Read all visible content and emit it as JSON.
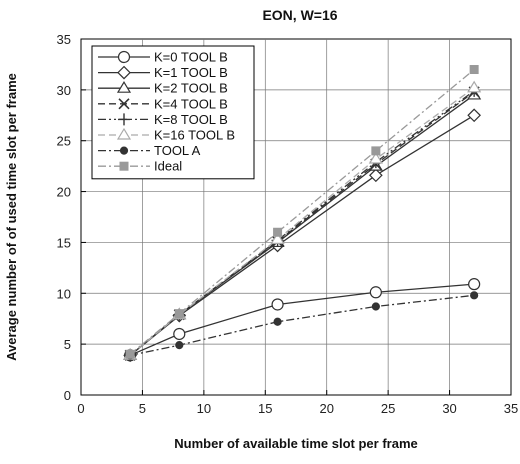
{
  "chart_data": {
    "type": "line",
    "title": "EON, W=16",
    "xlabel": "Number of available time slot per frame",
    "ylabel": "Average number of of used time slot per frame",
    "xlim": [
      0,
      35
    ],
    "ylim": [
      0,
      35
    ],
    "xticks": [
      0,
      5,
      10,
      15,
      20,
      25,
      30,
      35
    ],
    "yticks": [
      0,
      5,
      10,
      15,
      20,
      25,
      30,
      35
    ],
    "grid": true,
    "legend_position": "top-left",
    "x": [
      4,
      8,
      16,
      24,
      32
    ],
    "series": [
      {
        "name": "K=0 TOOL B",
        "values": [
          3.9,
          6.0,
          8.9,
          10.1,
          10.9
        ],
        "marker": "circle-open",
        "dash": "solid",
        "color": "#333333"
      },
      {
        "name": "K=1 TOOL B",
        "values": [
          3.9,
          7.8,
          14.7,
          21.6,
          27.5
        ],
        "marker": "diamond-open",
        "dash": "solid",
        "color": "#333333"
      },
      {
        "name": "K=2 TOOL B",
        "values": [
          3.9,
          7.9,
          15.0,
          22.5,
          29.5
        ],
        "marker": "triangle-open",
        "dash": "solid",
        "color": "#333333"
      },
      {
        "name": "K=4 TOOL B",
        "values": [
          3.9,
          7.9,
          15.1,
          22.7,
          29.8
        ],
        "marker": "x",
        "dash": "dashed",
        "color": "#333333"
      },
      {
        "name": "K=8 TOOL B",
        "values": [
          3.9,
          7.9,
          15.2,
          22.9,
          29.9
        ],
        "marker": "plus",
        "dash": "dashdotdot",
        "color": "#333333"
      },
      {
        "name": "K=16 TOOL B",
        "values": [
          3.9,
          7.9,
          15.3,
          23.2,
          30.2
        ],
        "marker": "triangle-open",
        "dash": "dashed",
        "color": "#aaaaaa"
      },
      {
        "name": "TOOL A",
        "values": [
          3.9,
          4.9,
          7.2,
          8.7,
          9.8
        ],
        "marker": "circle-filled",
        "dash": "dashdot",
        "color": "#333333"
      },
      {
        "name": "Ideal",
        "values": [
          4,
          8,
          16,
          24,
          32
        ],
        "marker": "square-filled",
        "dash": "dashdot",
        "color": "#999999"
      }
    ]
  }
}
